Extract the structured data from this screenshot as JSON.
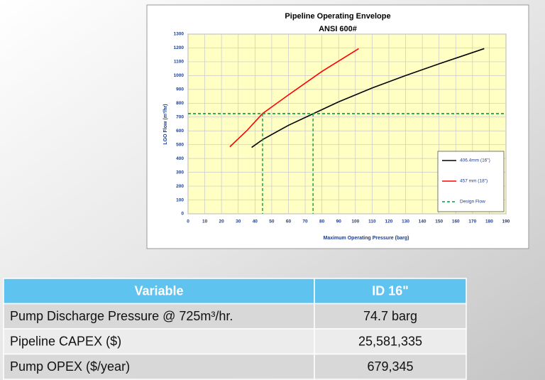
{
  "chart_data": {
    "type": "line",
    "title": "Pipeline Operating Envelope",
    "subtitle": "ANSI 600#",
    "x_label": "Maximum Operating Pressure (barg)",
    "y_label": "LGO Flow (m³/hr)",
    "xlim": [
      0,
      190
    ],
    "xticks": [
      0,
      10,
      20,
      30,
      40,
      50,
      60,
      70,
      80,
      90,
      100,
      110,
      120,
      130,
      140,
      150,
      160,
      170,
      180,
      190
    ],
    "ylim": [
      0,
      1300
    ],
    "yticks": [
      0,
      100,
      200,
      300,
      400,
      500,
      600,
      700,
      800,
      900,
      1000,
      1100,
      1200,
      1300
    ],
    "grid": true,
    "legend": "lower right",
    "background": "#ffffc4",
    "series": [
      {
        "name": "406.4mm (16\")",
        "color": "#000000",
        "x": [
          38,
          45,
          60,
          75,
          90,
          110,
          130,
          150,
          177
        ],
        "values": [
          480,
          540,
          640,
          725,
          810,
          910,
          1000,
          1085,
          1195
        ]
      },
      {
        "name": "457 mm (18\")",
        "color": "#ff0000",
        "x": [
          25,
          35,
          44.5,
          60,
          80,
          102
        ],
        "values": [
          485,
          600,
          725,
          860,
          1030,
          1195
        ]
      },
      {
        "name": "Design Flow",
        "color": "#00a040",
        "dashed": true,
        "x": [
          0,
          190
        ],
        "values": [
          725,
          725
        ],
        "crossings": [
          44.5,
          74.7
        ]
      }
    ]
  },
  "table": {
    "header": [
      "Variable",
      "ID 16\""
    ],
    "rows": [
      [
        "Pump Discharge Pressure @ 725m³/hr.",
        "74.7 barg"
      ],
      [
        "Pipeline CAPEX ($)",
        "25,581,335"
      ],
      [
        "Pump OPEX ($/year)",
        "679,345"
      ]
    ]
  }
}
